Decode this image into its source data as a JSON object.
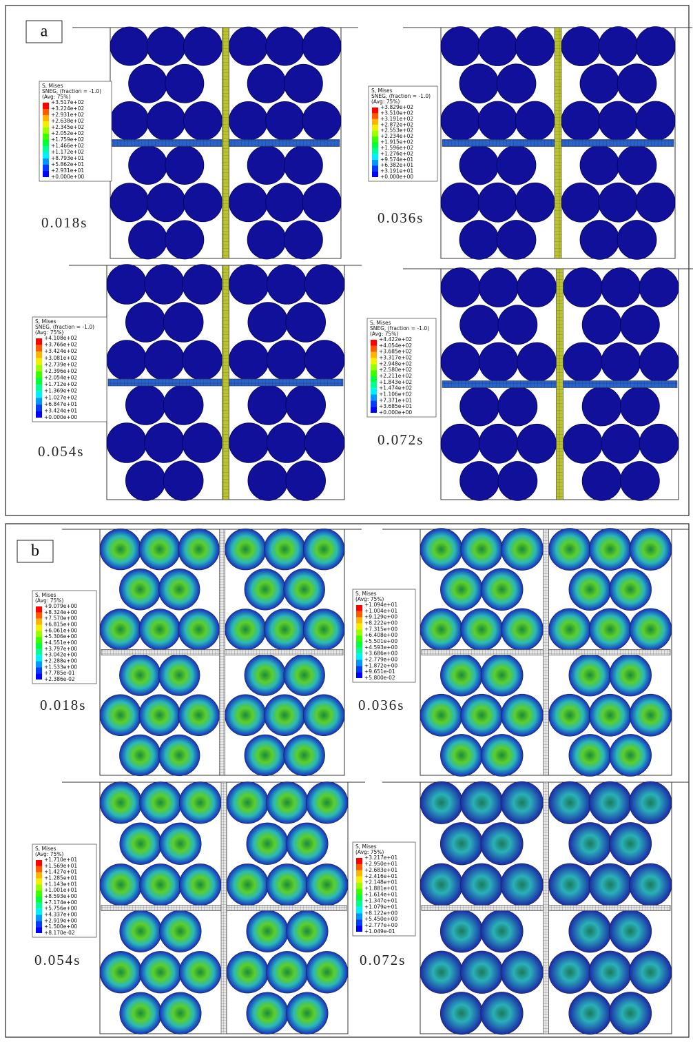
{
  "panels": [
    {
      "label": "a",
      "subpanels": [
        {
          "time": "0.018s",
          "legend": {
            "title": [
              "S, Mises",
              "SNEG, (fraction = -1.0)",
              "(Avg: 75%)"
            ],
            "values": [
              "+3.517e+02",
              "+3.224e+02",
              "+2.931e+02",
              "+2.638e+02",
              "+2.345e+02",
              "+2.052e+02",
              "+1.759e+02",
              "+1.466e+02",
              "+1.172e+02",
              "+8.793e+01",
              "+5.862e+01",
              "+2.931e+01",
              "+0.000e+00"
            ]
          }
        },
        {
          "time": "0.036s",
          "legend": {
            "title": [
              "S, Mises",
              "SNEG, (fraction = -1.0)",
              "(Avg: 75%)"
            ],
            "values": [
              "+3.829e+02",
              "+3.510e+02",
              "+3.191e+02",
              "+2.872e+02",
              "+2.553e+02",
              "+2.234e+02",
              "+1.915e+02",
              "+1.596e+02",
              "+1.276e+02",
              "+9.574e+01",
              "+6.382e+01",
              "+3.191e+01",
              "+0.000e+00"
            ]
          }
        },
        {
          "time": "0.054s",
          "legend": {
            "title": [
              "S, Mises",
              "SNEG, (fraction = -1.0)",
              "(Avg: 75%)"
            ],
            "values": [
              "+4.108e+02",
              "+3.766e+02",
              "+3.424e+02",
              "+3.081e+02",
              "+2.739e+02",
              "+2.396e+02",
              "+2.054e+02",
              "+1.712e+02",
              "+1.369e+02",
              "+1.027e+02",
              "+6.847e+01",
              "+3.424e+01",
              "+0.000e+00"
            ]
          }
        },
        {
          "time": "0.072s",
          "legend": {
            "title": [
              "S, Mises",
              "SNEG, (fraction = -1.0)",
              "(Avg: 75%)"
            ],
            "values": [
              "+4.422e+02",
              "+4.054e+02",
              "+3.685e+02",
              "+3.317e+02",
              "+2.948e+02",
              "+2.580e+02",
              "+2.211e+02",
              "+1.843e+02",
              "+1.474e+02",
              "+1.106e+02",
              "+7.371e+01",
              "+3.685e+01",
              "+0.000e+00"
            ]
          }
        }
      ]
    },
    {
      "label": "b",
      "subpanels": [
        {
          "time": "0.018s",
          "legend": {
            "title": [
              "S, Mises",
              "(Avg: 75%)"
            ],
            "values": [
              "+9.079e+00",
              "+8.324e+00",
              "+7.570e+00",
              "+6.815e+00",
              "+6.061e+00",
              "+5.306e+00",
              "+4.551e+00",
              "+3.797e+00",
              "+3.042e+00",
              "+2.288e+00",
              "+1.533e+00",
              "+7.785e-01",
              "+2.386e-02"
            ]
          }
        },
        {
          "time": "0.036s",
          "legend": {
            "title": [
              "S, Mises",
              "(Avg: 75%)"
            ],
            "values": [
              "+1.094e+01",
              "+1.004e+01",
              "+9.129e+00",
              "+8.222e+00",
              "+7.315e+00",
              "+6.408e+00",
              "+5.501e+00",
              "+4.593e+00",
              "+3.686e+00",
              "+2.779e+00",
              "+1.872e+00",
              "+9.651e-01",
              "+5.800e-02"
            ]
          }
        },
        {
          "time": "0.054s",
          "legend": {
            "title": [
              "S, Mises",
              "(Avg: 75%)"
            ],
            "values": [
              "+1.710e+01",
              "+1.569e+01",
              "+1.427e+01",
              "+1.285e+01",
              "+1.143e+01",
              "+1.001e+01",
              "+8.593e+00",
              "+7.174e+00",
              "+5.756e+00",
              "+4.337e+00",
              "+2.919e+00",
              "+1.500e+00",
              "+8.170e-02"
            ]
          }
        },
        {
          "time": "0.072s",
          "legend": {
            "title": [
              "S, Mises",
              "(Avg: 75%)"
            ],
            "values": [
              "+3.217e+01",
              "+2.950e+01",
              "+2.683e+01",
              "+2.416e+01",
              "+2.148e+01",
              "+1.881e+01",
              "+1.614e+01",
              "+1.347e+01",
              "+1.079e+01",
              "+8.122e+00",
              "+5.450e+00",
              "+2.777e+00",
              "+1.049e-01"
            ]
          }
        }
      ]
    }
  ]
}
